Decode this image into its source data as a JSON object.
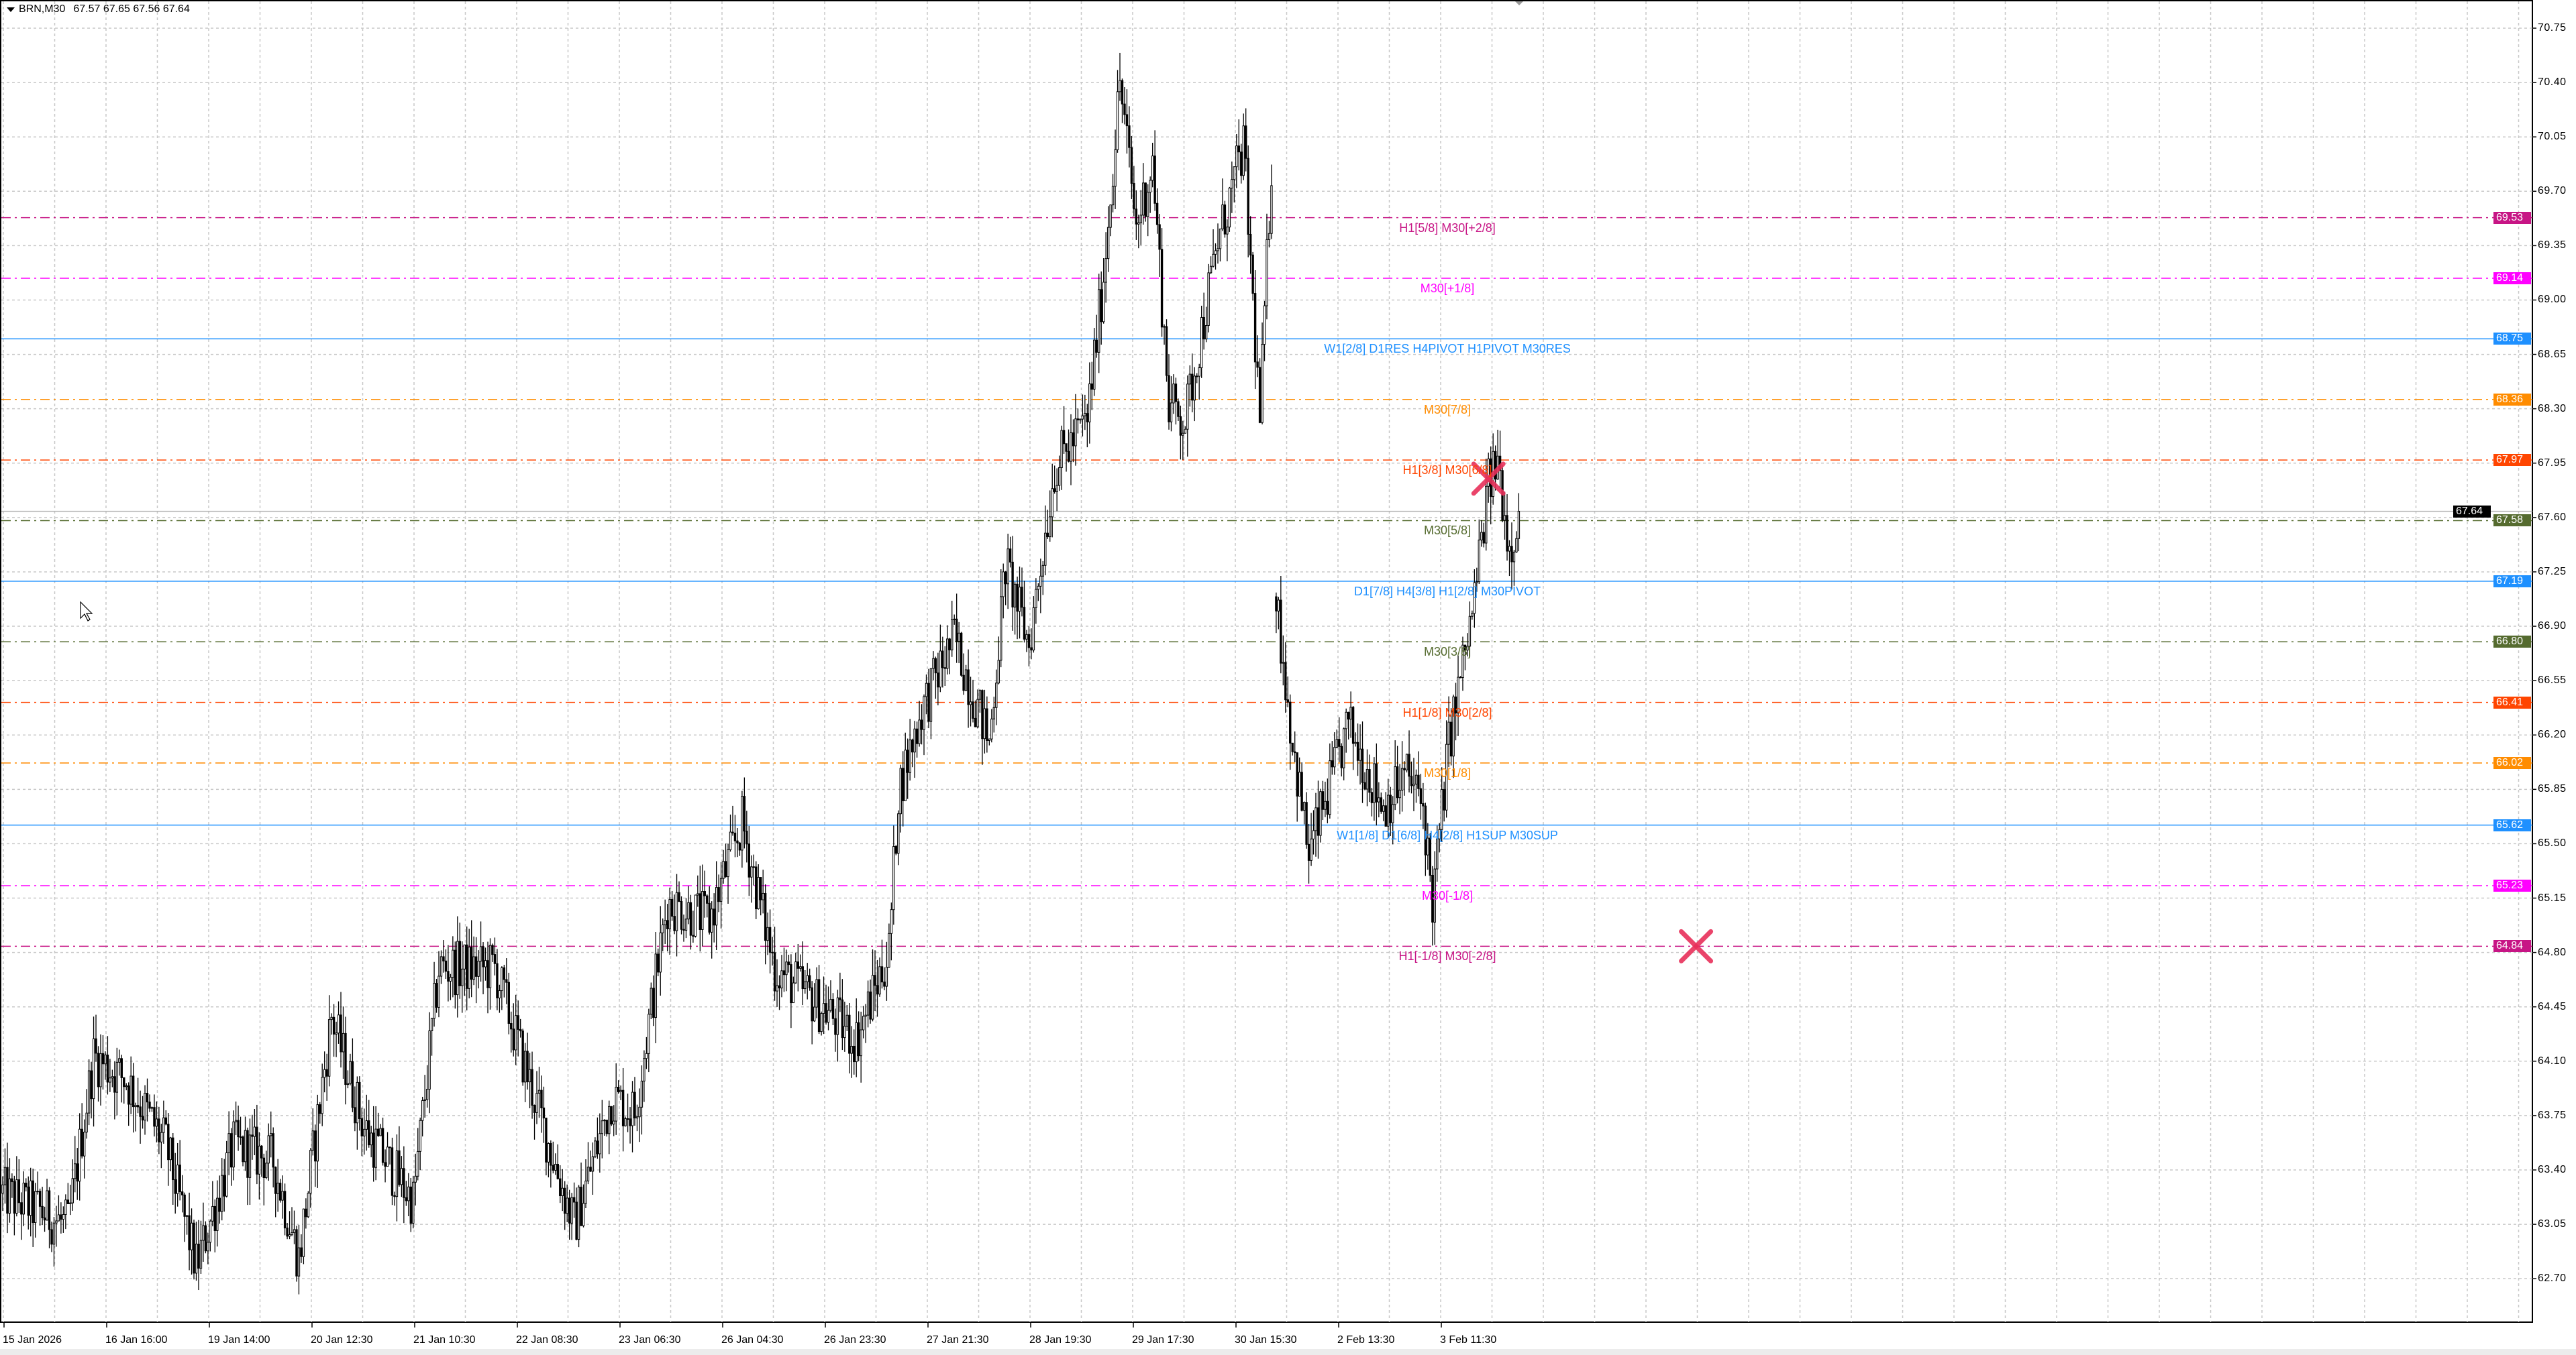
{
  "header": {
    "symbol": "BRN,M30",
    "ohlc": "67.57 67.65 67.56 67.64"
  },
  "current_price": {
    "value": "67.64",
    "color": "#000000"
  },
  "y_axis": {
    "ticks": [
      "70.75",
      "70.40",
      "70.05",
      "69.70",
      "69.35",
      "69.00",
      "68.65",
      "68.30",
      "67.95",
      "67.60",
      "67.25",
      "66.90",
      "66.55",
      "66.20",
      "65.85",
      "65.50",
      "65.15",
      "64.80",
      "64.45",
      "64.10",
      "63.75",
      "63.40",
      "63.05",
      "62.70"
    ]
  },
  "x_axis": {
    "ticks": [
      "15 Jan 2026",
      "16 Jan 16:00",
      "19 Jan 14:00",
      "20 Jan 12:30",
      "21 Jan 10:30",
      "22 Jan 08:30",
      "23 Jan 06:30",
      "26 Jan 04:30",
      "26 Jan 23:30",
      "27 Jan 21:30",
      "28 Jan 19:30",
      "29 Jan 17:30",
      "30 Jan 15:30",
      "2 Feb 13:30",
      "3 Feb 11:30"
    ]
  },
  "levels": [
    {
      "price": "69.53",
      "label": "H1[5/8] M30[+2/8]",
      "color": "#C71585",
      "style": "dashdot"
    },
    {
      "price": "69.14",
      "label": "M30[+1/8]",
      "color": "#FF00FF",
      "style": "dashdot"
    },
    {
      "price": "68.75",
      "label": "W1[2/8] D1RES H4PIVOT H1PIVOT M30RES",
      "color": "#1E90FF",
      "style": "solid"
    },
    {
      "price": "68.36",
      "label": "M30[7/8]",
      "color": "#FF8C00",
      "style": "dashdot"
    },
    {
      "price": "67.97",
      "label": "H1[3/8] M30[6/8]",
      "color": "#FF4500",
      "style": "dashdot"
    },
    {
      "price": "67.58",
      "label": "M30[5/8]",
      "color": "#556B2F",
      "style": "dashdot"
    },
    {
      "price": "67.19",
      "label": "D1[7/8] H4[3/8] H1[2/8] M30PIVOT",
      "color": "#1E90FF",
      "style": "solid"
    },
    {
      "price": "66.80",
      "label": "M30[3/8]",
      "color": "#556B2F",
      "style": "dashdot"
    },
    {
      "price": "66.41",
      "label": "H1[1/8] M30[2/8]",
      "color": "#FF4500",
      "style": "dashdot"
    },
    {
      "price": "66.02",
      "label": "M30[1/8]",
      "color": "#FF8C00",
      "style": "dashdot"
    },
    {
      "price": "65.62",
      "label": "W1[1/8] D1[6/8] H4[2/8] H1SUP M30SUP",
      "color": "#1E90FF",
      "style": "solid"
    },
    {
      "price": "65.23",
      "label": "M30[-1/8]",
      "color": "#FF00FF",
      "style": "dashdot"
    },
    {
      "price": "64.84",
      "label": "H1[-1/8] M30[-2/8]",
      "color": "#C71585",
      "style": "dashdot"
    }
  ],
  "markers": [
    {
      "icon": "x-mark-icon",
      "price": 67.85,
      "bar": 637,
      "color": "#E8305A"
    },
    {
      "icon": "x-mark-icon",
      "price": 64.84,
      "bar": 726,
      "color": "#E8305A"
    }
  ],
  "chart_data": {
    "type": "candlestick",
    "title": "",
    "grid": true,
    "ylim": [
      62.55,
      70.9
    ],
    "price_path": [
      {
        "bar": 0,
        "price": 63.25
      },
      {
        "bar": 14,
        "price": 63.15
      },
      {
        "bar": 28,
        "price": 63.04
      },
      {
        "bar": 39,
        "price": 64.13
      },
      {
        "bar": 53,
        "price": 63.98
      },
      {
        "bar": 70,
        "price": 63.56
      },
      {
        "bar": 83,
        "price": 62.78
      },
      {
        "bar": 99,
        "price": 63.56
      },
      {
        "bar": 116,
        "price": 63.46
      },
      {
        "bar": 127,
        "price": 62.83
      },
      {
        "bar": 141,
        "price": 64.39
      },
      {
        "bar": 155,
        "price": 63.67
      },
      {
        "bar": 176,
        "price": 63.2
      },
      {
        "bar": 187,
        "price": 64.7
      },
      {
        "bar": 211,
        "price": 64.7
      },
      {
        "bar": 232,
        "price": 63.67
      },
      {
        "bar": 245,
        "price": 63.04
      },
      {
        "bar": 261,
        "price": 63.87
      },
      {
        "bar": 271,
        "price": 63.77
      },
      {
        "bar": 285,
        "price": 65.12
      },
      {
        "bar": 303,
        "price": 65.01
      },
      {
        "bar": 317,
        "price": 65.64
      },
      {
        "bar": 331,
        "price": 64.7
      },
      {
        "bar": 352,
        "price": 64.44
      },
      {
        "bar": 366,
        "price": 64.24
      },
      {
        "bar": 380,
        "price": 64.81
      },
      {
        "bar": 384,
        "price": 65.84
      },
      {
        "bar": 394,
        "price": 66.36
      },
      {
        "bar": 408,
        "price": 66.83
      },
      {
        "bar": 423,
        "price": 66.15
      },
      {
        "bar": 430,
        "price": 67.3
      },
      {
        "bar": 440,
        "price": 66.78
      },
      {
        "bar": 451,
        "price": 67.92
      },
      {
        "bar": 465,
        "price": 68.23
      },
      {
        "bar": 472,
        "price": 69.16
      },
      {
        "bar": 479,
        "price": 70.41
      },
      {
        "bar": 486,
        "price": 69.47
      },
      {
        "bar": 493,
        "price": 69.89
      },
      {
        "bar": 500,
        "price": 68.33
      },
      {
        "bar": 507,
        "price": 68.23
      },
      {
        "bar": 521,
        "price": 69.37
      },
      {
        "bar": 532,
        "price": 69.99
      },
      {
        "bar": 539,
        "price": 68.23
      },
      {
        "bar": 544,
        "price": 69.89
      },
      {
        "bar": 546,
        "price": 67.09
      },
      {
        "bar": 553,
        "price": 66.15
      },
      {
        "bar": 560,
        "price": 65.43
      },
      {
        "bar": 577,
        "price": 66.26
      },
      {
        "bar": 592,
        "price": 65.74
      },
      {
        "bar": 602,
        "price": 65.95
      },
      {
        "bar": 609,
        "price": 65.74
      },
      {
        "bar": 613,
        "price": 65.12
      },
      {
        "bar": 620,
        "price": 66.15
      },
      {
        "bar": 630,
        "price": 66.98
      },
      {
        "bar": 637,
        "price": 67.81
      },
      {
        "bar": 641,
        "price": 67.97
      },
      {
        "bar": 646,
        "price": 67.4
      },
      {
        "bar": 650,
        "price": 67.64
      }
    ]
  }
}
